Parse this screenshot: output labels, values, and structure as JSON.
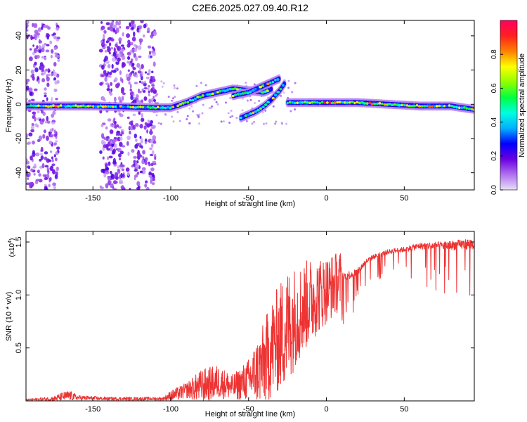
{
  "title": "C2E6.2025.027.09.40.R12",
  "chart_data": [
    {
      "type": "heatmap",
      "xlabel": "Height of straight line (km)",
      "ylabel": "Frequency (Hz)",
      "xlim": [
        -193,
        95
      ],
      "ylim": [
        -50,
        49
      ],
      "xticks": [
        -150,
        -100,
        -50,
        0,
        50
      ],
      "yticks": [
        -40,
        -20,
        0,
        20,
        40
      ],
      "colorbar": {
        "label": "Normalized spectral amplitude",
        "range": [
          0,
          1
        ],
        "ticks": [
          0.0,
          0.2,
          0.4,
          0.6,
          0.8
        ],
        "colors": [
          "#e8e0f8",
          "#b070f0",
          "#6a00e0",
          "#0000ff",
          "#00b0ff",
          "#00ffe0",
          "#00ff40",
          "#90ff00",
          "#ffff00",
          "#ff8000",
          "#ff2020",
          "#ff0060"
        ]
      },
      "traces": [
        {
          "name_hint": "main",
          "x": [
            -193,
            -150,
            -110,
            -100,
            -90,
            -80,
            -70,
            -60,
            -50,
            -40,
            -35
          ],
          "y": [
            -1,
            -1,
            -2,
            -2,
            1,
            5,
            7,
            9,
            8,
            7,
            9
          ]
        },
        {
          "name_hint": "lower-branch",
          "x": [
            -55,
            -50,
            -45,
            -40,
            -35,
            -30,
            -27
          ],
          "y": [
            -8,
            -6,
            -4,
            -1,
            3,
            8,
            12
          ]
        },
        {
          "name_hint": "upper-branch",
          "x": [
            -60,
            -55,
            -50,
            -45,
            -40,
            -35,
            -30
          ],
          "y": [
            5,
            6,
            7,
            9,
            11,
            13,
            15
          ]
        },
        {
          "name_hint": "tail",
          "x": [
            -25,
            -10,
            0,
            20,
            40,
            60,
            80,
            95
          ],
          "y": [
            1,
            1,
            1,
            1,
            0,
            -1,
            -1,
            -3
          ]
        }
      ],
      "noise_bands_x": [
        [
          -193,
          -172
        ],
        [
          -145,
          -130
        ],
        [
          -128,
          -110
        ]
      ]
    },
    {
      "type": "line",
      "xlabel": "Height of straight line (km)",
      "ylabel": "SNR (10 * v/v)",
      "y_multiplier": "(x10",
      "y_multiplier_exp": "4",
      "xlim": [
        -193,
        95
      ],
      "ylim": [
        0,
        1.6
      ],
      "xticks": [
        -150,
        -100,
        -50,
        0,
        50
      ],
      "yticks": [
        0.5,
        1.0,
        1.5
      ],
      "ytick_labels": [
        "0.5",
        "1.0",
        "1.5"
      ],
      "color": "#ee3333",
      "envelope": {
        "x": [
          -193,
          -175,
          -170,
          -165,
          -160,
          -140,
          -120,
          -105,
          -100,
          -95,
          -90,
          -80,
          -70,
          -60,
          -50,
          -40,
          -35,
          -30,
          -25,
          -20,
          -10,
          0,
          10,
          20,
          25,
          30,
          40,
          50,
          60,
          70,
          80,
          90,
          95
        ],
        "mean": [
          0.01,
          0.02,
          0.04,
          0.05,
          0.03,
          0.02,
          0.02,
          0.02,
          0.05,
          0.07,
          0.1,
          0.14,
          0.18,
          0.13,
          0.2,
          0.35,
          0.5,
          0.6,
          0.7,
          0.8,
          0.95,
          1.05,
          1.15,
          1.2,
          1.3,
          1.35,
          1.4,
          1.42,
          1.45,
          1.45,
          1.45,
          1.46,
          1.46
        ],
        "amp": [
          0.01,
          0.03,
          0.05,
          0.06,
          0.03,
          0.02,
          0.02,
          0.02,
          0.06,
          0.08,
          0.09,
          0.2,
          0.2,
          0.15,
          0.25,
          0.5,
          0.6,
          0.65,
          0.7,
          0.6,
          0.5,
          0.4,
          0.35,
          0.3,
          0.2,
          0.18,
          0.18,
          0.2,
          0.25,
          0.3,
          0.35,
          0.4,
          0.45
        ]
      }
    }
  ]
}
